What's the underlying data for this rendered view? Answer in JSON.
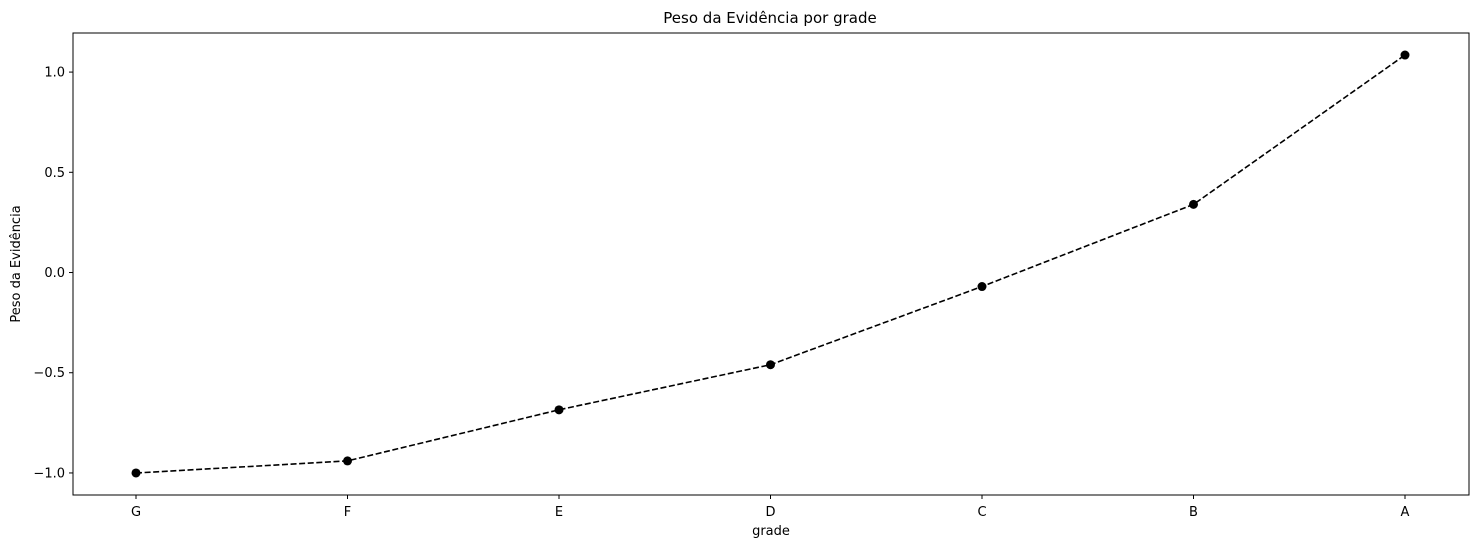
{
  "chart_data": {
    "type": "line",
    "title": "Peso da Evidência por grade",
    "xlabel": "grade",
    "ylabel": "Peso da Evidência",
    "categories": [
      "G",
      "F",
      "E",
      "D",
      "C",
      "B",
      "A"
    ],
    "series": [
      {
        "values": [
          -1.0,
          -0.94,
          -0.685,
          -0.46,
          -0.07,
          0.34,
          1.085
        ]
      }
    ],
    "ylim": [
      -1.11,
      1.195
    ],
    "yticks": [
      -1.0,
      -0.5,
      0.0,
      0.5,
      1.0
    ],
    "ytick_labels": [
      "−1.0",
      "−0.5",
      "0.0",
      "0.5",
      "1.0"
    ],
    "line_style": "dashed",
    "marker": "circle",
    "line_color": "#000000",
    "grid": false,
    "legend": "none"
  }
}
